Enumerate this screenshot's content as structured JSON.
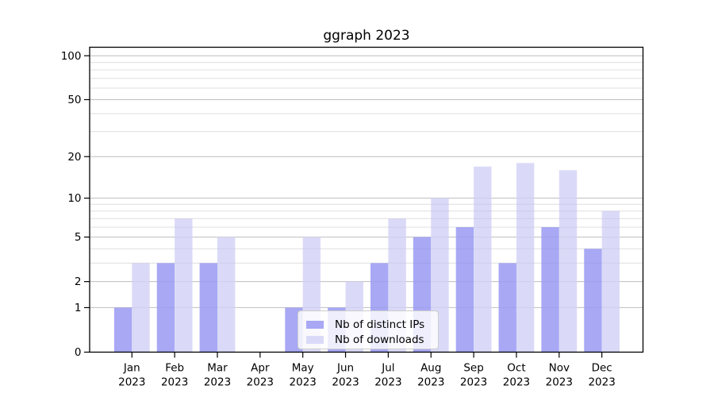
{
  "figure": {
    "title": "ggraph 2023"
  },
  "chart_data": {
    "type": "bar",
    "title": "ggraph 2023",
    "categories": [
      "Jan 2023",
      "Feb 2023",
      "Mar 2023",
      "Apr 2023",
      "May 2023",
      "Jun 2023",
      "Jul 2023",
      "Aug 2023",
      "Sep 2023",
      "Oct 2023",
      "Nov 2023",
      "Dec 2023"
    ],
    "month_labels": [
      "Jan",
      "Feb",
      "Mar",
      "Apr",
      "May",
      "Jun",
      "Jul",
      "Aug",
      "Sep",
      "Oct",
      "Nov",
      "Dec"
    ],
    "year_label": "2023",
    "series": [
      {
        "name": "Nb of distinct IPs",
        "color": "#a8a8f5",
        "values": [
          1,
          3,
          3,
          0,
          1,
          1,
          3,
          5,
          6,
          3,
          6,
          4
        ]
      },
      {
        "name": "Nb of downloads",
        "color": "#dadaf8",
        "values": [
          3,
          7,
          5,
          0,
          5,
          2,
          7,
          10,
          17,
          18,
          16,
          8
        ]
      }
    ],
    "xlabel": "",
    "ylabel": "",
    "y_scale": "log1p",
    "y_ticks": [
      0,
      1,
      2,
      5,
      10,
      20,
      50,
      100
    ],
    "y_minor_gridlines": [
      3,
      4,
      6,
      7,
      8,
      9,
      30,
      40,
      60,
      70,
      80,
      90
    ],
    "ylim": [
      0,
      114.3
    ],
    "grid": true,
    "legend_position": "lower center inside"
  },
  "colors": {
    "axis": "#000000",
    "major_grid": "#c9c9c9",
    "minor_grid": "#ececec",
    "grid_overlay": "rgba(110,110,130,0.10)",
    "text": "#000000",
    "legend_border": "#cccccc",
    "legend_bg": "rgba(255,255,255,0.8)",
    "background": "#ffffff"
  }
}
